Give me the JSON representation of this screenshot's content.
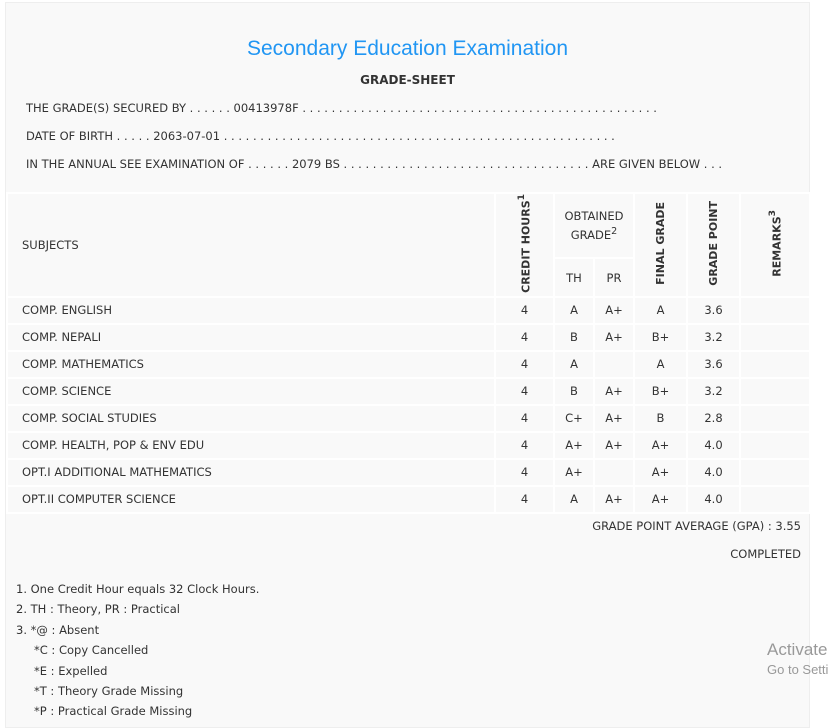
{
  "header": {
    "title": "Secondary Education Examination",
    "subtitle": "GRADE-SHEET"
  },
  "info": {
    "secured_by": "THE GRADE(S) SECURED BY . . . . . . 00413978F . . . . . . . . . . . . . . . . . . . . . . . . . . . . . . . . . . . . . . . . . . . . . . . . .",
    "dob": "DATE OF BIRTH . . . . . 2063-07-01 . . . . . . . . . . . . . . . . . . . . . . . . . . . . . . . . . . . . . . . . . . . . . . . . . . . . . .",
    "exam": "IN THE ANNUAL SEE EXAMINATION OF . . . . . . 2079 BS . . . . . . . . . . . . . . . . . . . . . . . . . . . . . . . . . . ARE GIVEN BELOW . . ."
  },
  "table": {
    "headers": {
      "subjects": "SUBJECTS",
      "credit": "CREDIT HOURS",
      "credit_sup": "1",
      "obtained": "OBTAINED GRADE",
      "obtained_sup": "2",
      "th": "TH",
      "pr": "PR",
      "final": "FINAL GRADE",
      "point": "GRADE POINT",
      "remarks": "REMARKS",
      "remarks_sup": "3"
    },
    "rows": [
      {
        "subject": "COMP. ENGLISH",
        "credit": "4",
        "th": "A",
        "pr": "A+",
        "final": "A",
        "point": "3.6",
        "remarks": ""
      },
      {
        "subject": "COMP. NEPALI",
        "credit": "4",
        "th": "B",
        "pr": "A+",
        "final": "B+",
        "point": "3.2",
        "remarks": ""
      },
      {
        "subject": "COMP. MATHEMATICS",
        "credit": "4",
        "th": "A",
        "pr": "",
        "final": "A",
        "point": "3.6",
        "remarks": ""
      },
      {
        "subject": "COMP. SCIENCE",
        "credit": "4",
        "th": "B",
        "pr": "A+",
        "final": "B+",
        "point": "3.2",
        "remarks": ""
      },
      {
        "subject": "COMP. SOCIAL STUDIES",
        "credit": "4",
        "th": "C+",
        "pr": "A+",
        "final": "B",
        "point": "2.8",
        "remarks": ""
      },
      {
        "subject": "COMP. HEALTH, POP & ENV EDU",
        "credit": "4",
        "th": "A+",
        "pr": "A+",
        "final": "A+",
        "point": "4.0",
        "remarks": ""
      },
      {
        "subject": "OPT.I ADDITIONAL MATHEMATICS",
        "credit": "4",
        "th": "A+",
        "pr": "",
        "final": "A+",
        "point": "4.0",
        "remarks": ""
      },
      {
        "subject": "OPT.II COMPUTER SCIENCE",
        "credit": "4",
        "th": "A",
        "pr": "A+",
        "final": "A+",
        "point": "4.0",
        "remarks": ""
      }
    ]
  },
  "summary": {
    "gpa": "GRADE POINT AVERAGE (GPA) : 3.55",
    "status": "COMPLETED"
  },
  "footnotes": [
    "1. One Credit Hour equals 32 Clock Hours.",
    "2. TH : Theory, PR : Practical",
    "3. *@ : Absent",
    "*C : Copy Cancelled",
    "*E : Expelled",
    "*T : Theory Grade Missing",
    "*P : Practical Grade Missing"
  ],
  "watermark": {
    "line1": "Activate",
    "line2": "Go to Setti"
  }
}
